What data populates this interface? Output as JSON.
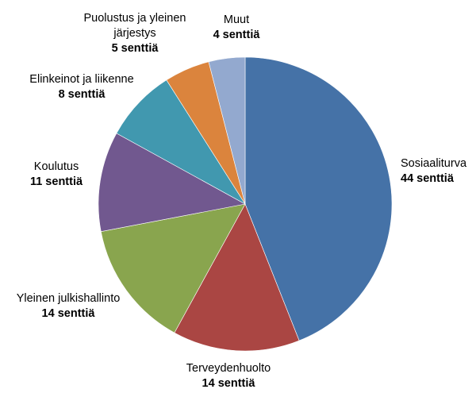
{
  "chart_data": {
    "type": "pie",
    "title": "",
    "unit": "senttiä",
    "slices": [
      {
        "name": "Sosiaaliturva",
        "value": 44,
        "value_label": "44 senttiä",
        "color": "#4572a7"
      },
      {
        "name": "Terveydenhuolto",
        "value": 14,
        "value_label": "14 senttiä",
        "color": "#aa4643"
      },
      {
        "name": "Yleinen julkishallinto",
        "value": 14,
        "value_label": "14 senttiä",
        "color": "#89a54e"
      },
      {
        "name": "Koulutus",
        "value": 11,
        "value_label": "11 senttiä",
        "color": "#71588f"
      },
      {
        "name": "Elinkeinot ja liikenne",
        "value": 8,
        "value_label": "8 senttiä",
        "color": "#4198af"
      },
      {
        "name": "Puolustus ja yleinen järjestys",
        "value": 5,
        "value_label": "5 senttiä",
        "color": "#db843d"
      },
      {
        "name": "Muut",
        "value": 4,
        "value_label": "4 senttiä",
        "color": "#93a9cf"
      }
    ],
    "legend": "none",
    "start": "top",
    "direction": "clockwise"
  }
}
